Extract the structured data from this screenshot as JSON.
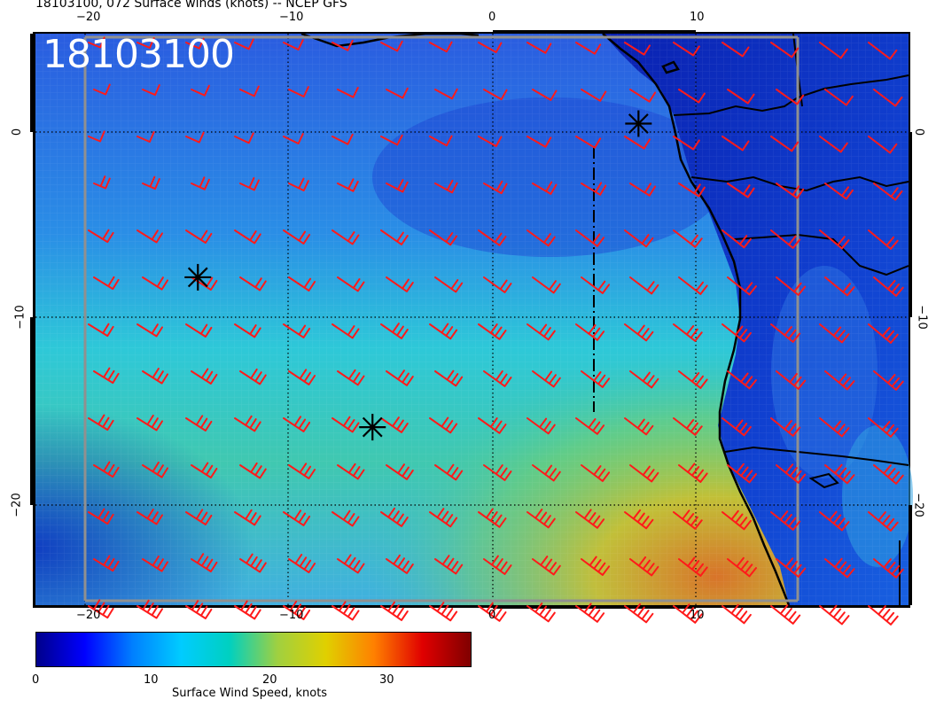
{
  "header": {
    "title": "18103100, 072 Surface winds (knots) -- NCEP GFS"
  },
  "map": {
    "date_stamp": "18103100",
    "lon_ticks_top": [
      "−20",
      "−10",
      "0",
      "10"
    ],
    "lon_ticks_bottom": [
      "−20",
      "−10",
      "0",
      "10"
    ],
    "lat_ticks_left": [
      "0",
      "−10",
      "−20"
    ],
    "lat_ticks_right": [
      "0",
      "−10",
      "−20"
    ],
    "lon_range": [
      -22.5,
      20.5
    ],
    "lat_range": [
      -25.5,
      5
    ],
    "gridlines": "dotted",
    "markers": [
      {
        "name": "asterisk-marker-north",
        "lon": 7.2,
        "lat": 0.2
      },
      {
        "name": "asterisk-marker-west",
        "lon": -14.5,
        "lat": -8.0
      },
      {
        "name": "asterisk-marker-south",
        "lon": -5.9,
        "lat": -16.0
      }
    ],
    "colors": {
      "barb": "#ff1a1a",
      "land_outline": "#000000",
      "grid": "#000000",
      "stamp": "#ffffff"
    }
  },
  "colorbar": {
    "title": "Surface Wind Speed, knots",
    "tick_labels": [
      "0",
      "10",
      "20",
      "30"
    ],
    "tick_values": [
      0,
      10,
      20,
      30
    ],
    "range": [
      0,
      36
    ],
    "stops": [
      "#00008b",
      "#0000ff",
      "#0080ff",
      "#00ccff",
      "#00d0c0",
      "#a0d040",
      "#e0d000",
      "#ff8000",
      "#e00000",
      "#800000"
    ]
  }
}
